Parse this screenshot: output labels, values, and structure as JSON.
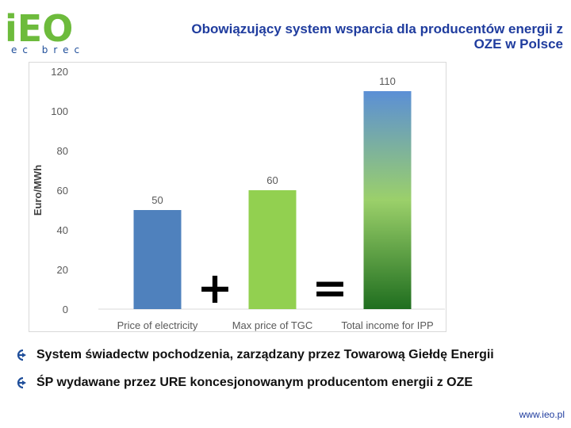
{
  "header": {
    "title_line1": "Obowiązujący system wsparcia dla producentów energii z",
    "title_line2": "OZE w Polsce",
    "logo_text": "iEO",
    "logo_subtext": "ec brec"
  },
  "chart_data": {
    "type": "bar",
    "categories": [
      "Price of electricity",
      "Max price of TGC",
      "Total income for IPP"
    ],
    "values": [
      50,
      60,
      110
    ],
    "ylabel": "Euro/MWh",
    "ylim": [
      0,
      120
    ],
    "yticks": [
      0,
      20,
      40,
      60,
      80,
      100,
      120
    ],
    "operators": [
      "+",
      "="
    ],
    "grid": false,
    "legend": "none",
    "colors": [
      "#4f81bd",
      "#92d050",
      "#3c8f2c"
    ]
  },
  "bullets": [
    "System świadectw pochodzenia, zarządzany przez Towarową Giełdę Energii",
    "ŚP wydawane przez URE koncesjonowanym producentom energii z OZE"
  ],
  "footer": {
    "url": "www.ieo.pl"
  },
  "colors": {
    "title": "#1f3c9e",
    "logo_green": "#6dbb3c",
    "bullet_arrow": "#1f4e9a"
  }
}
